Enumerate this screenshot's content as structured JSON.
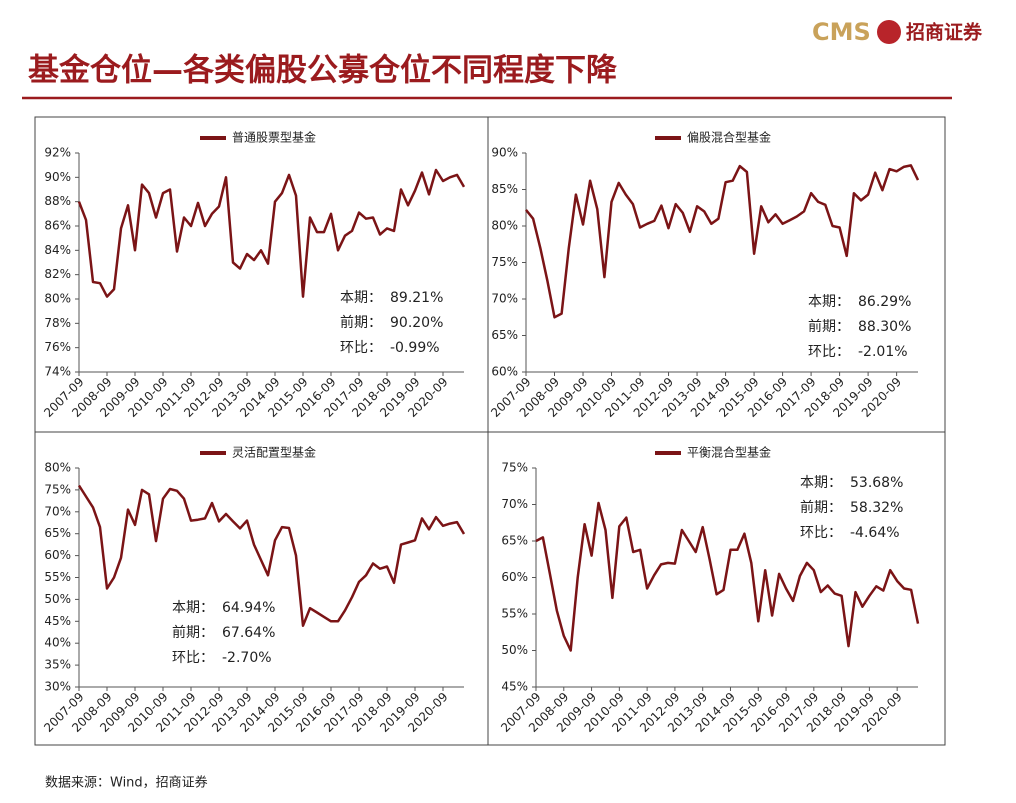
{
  "header": {
    "title": "基金仓位—各类偏股公募仓位不同程度下降",
    "logo_text": "CMS",
    "logo_cn": "招商证券"
  },
  "source": "数据来源：Wind，招商证券",
  "chart_data": [
    {
      "type": "line",
      "categories": [
        "2007-09",
        null,
        null,
        null,
        "2008-09",
        null,
        null,
        null,
        "2009-09",
        null,
        null,
        null,
        "2010-09",
        null,
        null,
        null,
        "2011-09",
        null,
        null,
        null,
        "2012-09",
        null,
        null,
        null,
        "2013-09",
        null,
        null,
        null,
        "2014-09",
        null,
        null,
        null,
        "2015-09",
        null,
        null,
        null,
        "2016-09",
        null,
        null,
        null,
        "2017-09",
        null,
        null,
        null,
        "2018-09",
        null,
        null,
        null,
        "2019-09",
        null,
        null,
        null,
        "2020-09",
        null,
        null,
        null
      ],
      "series": [
        {
          "name": "普通股票型基金",
          "color": "#7b1416",
          "values": [
            88.0,
            86.5,
            81.4,
            81.3,
            80.2,
            80.8,
            85.8,
            87.7,
            84.0,
            89.4,
            88.7,
            86.7,
            88.7,
            89.0,
            83.9,
            86.7,
            86.0,
            87.9,
            86.0,
            87.0,
            87.6,
            90.0,
            83.0,
            82.5,
            83.7,
            83.2,
            84.0,
            82.9,
            88.0,
            88.7,
            90.2,
            88.5,
            80.2,
            86.7,
            85.5,
            85.5,
            87.0,
            84.0,
            85.2,
            85.6,
            87.1,
            86.6,
            86.7,
            85.3,
            85.8,
            85.6,
            89.0,
            87.7,
            88.9,
            90.4,
            88.6,
            90.6,
            89.7,
            90.0,
            90.2,
            89.21
          ]
        }
      ],
      "ylim": [
        74,
        92
      ],
      "yticks": [
        {
          "value": 74,
          "label": "74%"
        },
        {
          "value": 76,
          "label": "76%"
        },
        {
          "value": 78,
          "label": "78%"
        },
        {
          "value": 80,
          "label": "80%"
        },
        {
          "value": 82,
          "label": "82%"
        },
        {
          "value": 84,
          "label": "84%"
        },
        {
          "value": 86,
          "label": "86%"
        },
        {
          "value": 88,
          "label": "88%"
        },
        {
          "value": 90,
          "label": "90%"
        },
        {
          "value": 92,
          "label": "92%"
        }
      ],
      "stats": [
        {
          "label": "本期：",
          "value": "89.21%"
        },
        {
          "label": "前期：",
          "value": "90.20%"
        },
        {
          "label": "环比：",
          "value": "-0.99%"
        }
      ]
    },
    {
      "type": "line",
      "categories": [
        "2007-09",
        null,
        null,
        null,
        "2008-09",
        null,
        null,
        null,
        "2009-09",
        null,
        null,
        null,
        "2010-09",
        null,
        null,
        null,
        "2011-09",
        null,
        null,
        null,
        "2012-09",
        null,
        null,
        null,
        "2013-09",
        null,
        null,
        null,
        "2014-09",
        null,
        null,
        null,
        "2015-09",
        null,
        null,
        null,
        "2016-09",
        null,
        null,
        null,
        "2017-09",
        null,
        null,
        null,
        "2018-09",
        null,
        null,
        null,
        "2019-09",
        null,
        null,
        null,
        "2020-09",
        null,
        null,
        null
      ],
      "series": [
        {
          "name": "偏股混合型基金",
          "color": "#7b1416",
          "values": [
            82.2,
            81.0,
            77.0,
            72.5,
            67.5,
            68.0,
            77.0,
            84.3,
            80.2,
            86.2,
            82.3,
            73.0,
            83.3,
            85.9,
            84.3,
            83.0,
            79.8,
            80.3,
            80.7,
            82.8,
            79.7,
            83.0,
            81.8,
            79.2,
            82.7,
            82.0,
            80.3,
            81.0,
            86.0,
            86.2,
            88.2,
            87.4,
            76.2,
            82.7,
            80.5,
            81.6,
            80.3,
            80.8,
            81.3,
            82.0,
            84.5,
            83.3,
            82.9,
            80.0,
            79.8,
            75.9,
            84.5,
            83.5,
            84.3,
            87.3,
            84.9,
            87.8,
            87.5,
            88.1,
            88.3,
            86.29
          ]
        }
      ],
      "ylim": [
        60,
        90
      ],
      "yticks": [
        {
          "value": 60,
          "label": "60%"
        },
        {
          "value": 65,
          "label": "65%"
        },
        {
          "value": 70,
          "label": "70%"
        },
        {
          "value": 75,
          "label": "75%"
        },
        {
          "value": 80,
          "label": "80%"
        },
        {
          "value": 85,
          "label": "85%"
        },
        {
          "value": 90,
          "label": "90%"
        }
      ],
      "stats": [
        {
          "label": "本期：",
          "value": "86.29%"
        },
        {
          "label": "前期：",
          "value": "88.30%"
        },
        {
          "label": "环比：",
          "value": "-2.01%"
        }
      ]
    },
    {
      "type": "line",
      "categories": [
        "2007-09",
        null,
        null,
        null,
        "2008-09",
        null,
        null,
        null,
        "2009-09",
        null,
        null,
        null,
        "2010-09",
        null,
        null,
        null,
        "2011-09",
        null,
        null,
        null,
        "2012-09",
        null,
        null,
        null,
        "2013-09",
        null,
        null,
        null,
        "2014-09",
        null,
        null,
        null,
        "2015-09",
        null,
        null,
        null,
        "2016-09",
        null,
        null,
        null,
        "2017-09",
        null,
        null,
        null,
        "2018-09",
        null,
        null,
        null,
        "2019-09",
        null,
        null,
        null,
        "2020-09",
        null,
        null,
        null
      ],
      "series": [
        {
          "name": "灵活配置型基金",
          "color": "#7b1416",
          "values": [
            76.0,
            73.5,
            71.0,
            66.5,
            52.5,
            55.0,
            59.5,
            70.5,
            67.0,
            75.0,
            74.0,
            63.3,
            73.0,
            75.2,
            74.8,
            73.0,
            68.0,
            68.2,
            68.5,
            72.0,
            67.8,
            69.5,
            67.8,
            66.2,
            68.0,
            62.5,
            59.0,
            55.5,
            63.5,
            66.5,
            66.3,
            60.0,
            44.0,
            48.0,
            47.0,
            46.0,
            45.0,
            45.0,
            47.5,
            50.5,
            54.0,
            55.5,
            58.2,
            57.0,
            57.5,
            53.8,
            62.5,
            63.0,
            63.5,
            68.5,
            66.0,
            68.8,
            66.8,
            67.3,
            67.64,
            64.94
          ]
        }
      ],
      "ylim": [
        30,
        80
      ],
      "yticks": [
        {
          "value": 30,
          "label": "30%"
        },
        {
          "value": 35,
          "label": "35%"
        },
        {
          "value": 40,
          "label": "40%"
        },
        {
          "value": 45,
          "label": "45%"
        },
        {
          "value": 50,
          "label": "50%"
        },
        {
          "value": 55,
          "label": "55%"
        },
        {
          "value": 60,
          "label": "60%"
        },
        {
          "value": 65,
          "label": "65%"
        },
        {
          "value": 70,
          "label": "70%"
        },
        {
          "value": 75,
          "label": "75%"
        },
        {
          "value": 80,
          "label": "80%"
        }
      ],
      "stats": [
        {
          "label": "本期：",
          "value": "64.94%"
        },
        {
          "label": "前期：",
          "value": "67.64%"
        },
        {
          "label": "环比：",
          "value": "-2.70%"
        }
      ]
    },
    {
      "type": "line",
      "categories": [
        "2007-09",
        null,
        null,
        null,
        "2008-09",
        null,
        null,
        null,
        "2009-09",
        null,
        null,
        null,
        "2010-09",
        null,
        null,
        null,
        "2011-09",
        null,
        null,
        null,
        "2012-09",
        null,
        null,
        null,
        "2013-09",
        null,
        null,
        null,
        "2014-09",
        null,
        null,
        null,
        "2015-09",
        null,
        null,
        null,
        "2016-09",
        null,
        null,
        null,
        "2017-09",
        null,
        null,
        null,
        "2018-09",
        null,
        null,
        null,
        "2019-09",
        null,
        null,
        null,
        "2020-09",
        null,
        null,
        null
      ],
      "series": [
        {
          "name": "平衡混合型基金",
          "color": "#7b1416",
          "values": [
            65.0,
            65.5,
            60.5,
            55.5,
            52.0,
            50.0,
            60.0,
            67.3,
            63.0,
            70.2,
            66.5,
            57.2,
            67.0,
            68.2,
            63.5,
            63.8,
            58.5,
            60.3,
            61.8,
            62.0,
            61.9,
            66.5,
            65.0,
            63.5,
            66.9,
            62.5,
            57.7,
            58.3,
            63.8,
            63.8,
            66.0,
            62.0,
            54.0,
            61.0,
            54.8,
            60.5,
            58.5,
            56.8,
            60.2,
            62.0,
            61.0,
            58.0,
            58.9,
            57.8,
            57.5,
            50.6,
            58.0,
            56.0,
            57.5,
            58.8,
            58.2,
            61.0,
            59.5,
            58.5,
            58.32,
            53.68
          ]
        }
      ],
      "ylim": [
        45,
        75
      ],
      "yticks": [
        {
          "value": 45,
          "label": "45%"
        },
        {
          "value": 50,
          "label": "50%"
        },
        {
          "value": 55,
          "label": "55%"
        },
        {
          "value": 60,
          "label": "60%"
        },
        {
          "value": 65,
          "label": "65%"
        },
        {
          "value": 70,
          "label": "70%"
        },
        {
          "value": 75,
          "label": "75%"
        }
      ],
      "stats": [
        {
          "label": "本期：",
          "value": "53.68%"
        },
        {
          "label": "前期：",
          "value": "58.32%"
        },
        {
          "label": "环比：",
          "value": "-4.64%"
        }
      ]
    }
  ]
}
